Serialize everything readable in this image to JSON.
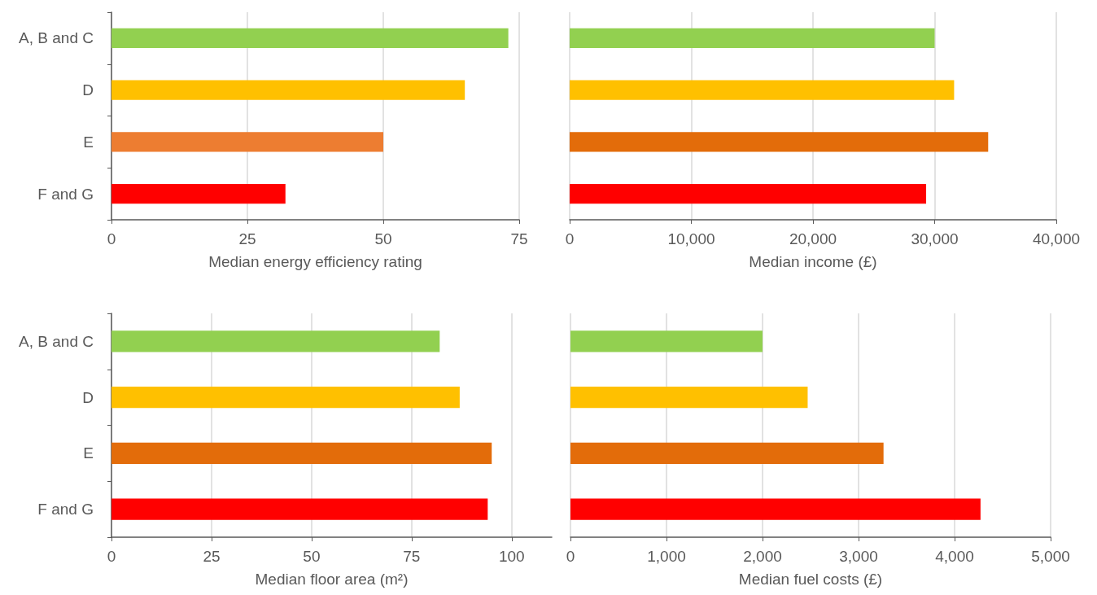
{
  "chart_data": [
    {
      "type": "bar",
      "orientation": "horizontal",
      "categories": [
        "A, B and C",
        "D",
        "E",
        "F and G"
      ],
      "values": [
        73,
        65,
        50,
        32
      ],
      "colors": [
        "#92d050",
        "#ffc000",
        "#ed7d31",
        "#ff0000"
      ],
      "xlabel": "Median energy efficiency rating",
      "xlim": [
        0,
        75
      ],
      "xticks": [
        0,
        25,
        50,
        75
      ],
      "grid": "x"
    },
    {
      "type": "bar",
      "orientation": "horizontal",
      "categories": [
        null,
        null,
        null,
        null
      ],
      "values": [
        30000,
        31600,
        34400,
        29300
      ],
      "colors": [
        "#92d050",
        "#ffc000",
        "#e36c0a",
        "#ff0000"
      ],
      "xlabel": "Median income (£)",
      "xlim": [
        0,
        40000
      ],
      "xticks": [
        {
          "value": 0,
          "label": "0"
        },
        {
          "value": 10000,
          "label": "10,000"
        },
        {
          "value": 20000,
          "label": "20,000"
        },
        {
          "value": 30000,
          "label": "30,000"
        },
        {
          "value": 40000,
          "label": "40,000"
        }
      ],
      "grid": "x",
      "tick_labels": "x"
    },
    {
      "type": "bar",
      "orientation": "horizontal",
      "categories": [
        "A, B and C",
        "D",
        "E",
        "F and G"
      ],
      "values": [
        82,
        87,
        95,
        94
      ],
      "colors": [
        "#92d050",
        "#ffc000",
        "#e36c0a",
        "#ff0000"
      ],
      "xlabel": "Median floor area (m²)",
      "xlim": [
        0,
        110
      ],
      "xticks": [
        0,
        25,
        50,
        75,
        100
      ],
      "grid": "x"
    },
    {
      "type": "bar",
      "orientation": "horizontal",
      "categories": [
        null,
        null,
        null,
        null
      ],
      "values": [
        2000,
        2470,
        3260,
        4270
      ],
      "colors": [
        "#92d050",
        "#ffc000",
        "#e36c0a",
        "#ff0000"
      ],
      "xlabel": "Median fuel costs (£)",
      "xlim": [
        0,
        5000
      ],
      "xticks": [
        {
          "value": 0,
          "label": "0"
        },
        {
          "value": 1000,
          "label": "1,000"
        },
        {
          "value": 2000,
          "label": "2,000"
        },
        {
          "value": 3000,
          "label": "3,000"
        },
        {
          "value": 4000,
          "label": "4,000"
        },
        {
          "value": 5000,
          "label": "5,000"
        }
      ],
      "grid": "x",
      "tick_labels": "x"
    }
  ]
}
